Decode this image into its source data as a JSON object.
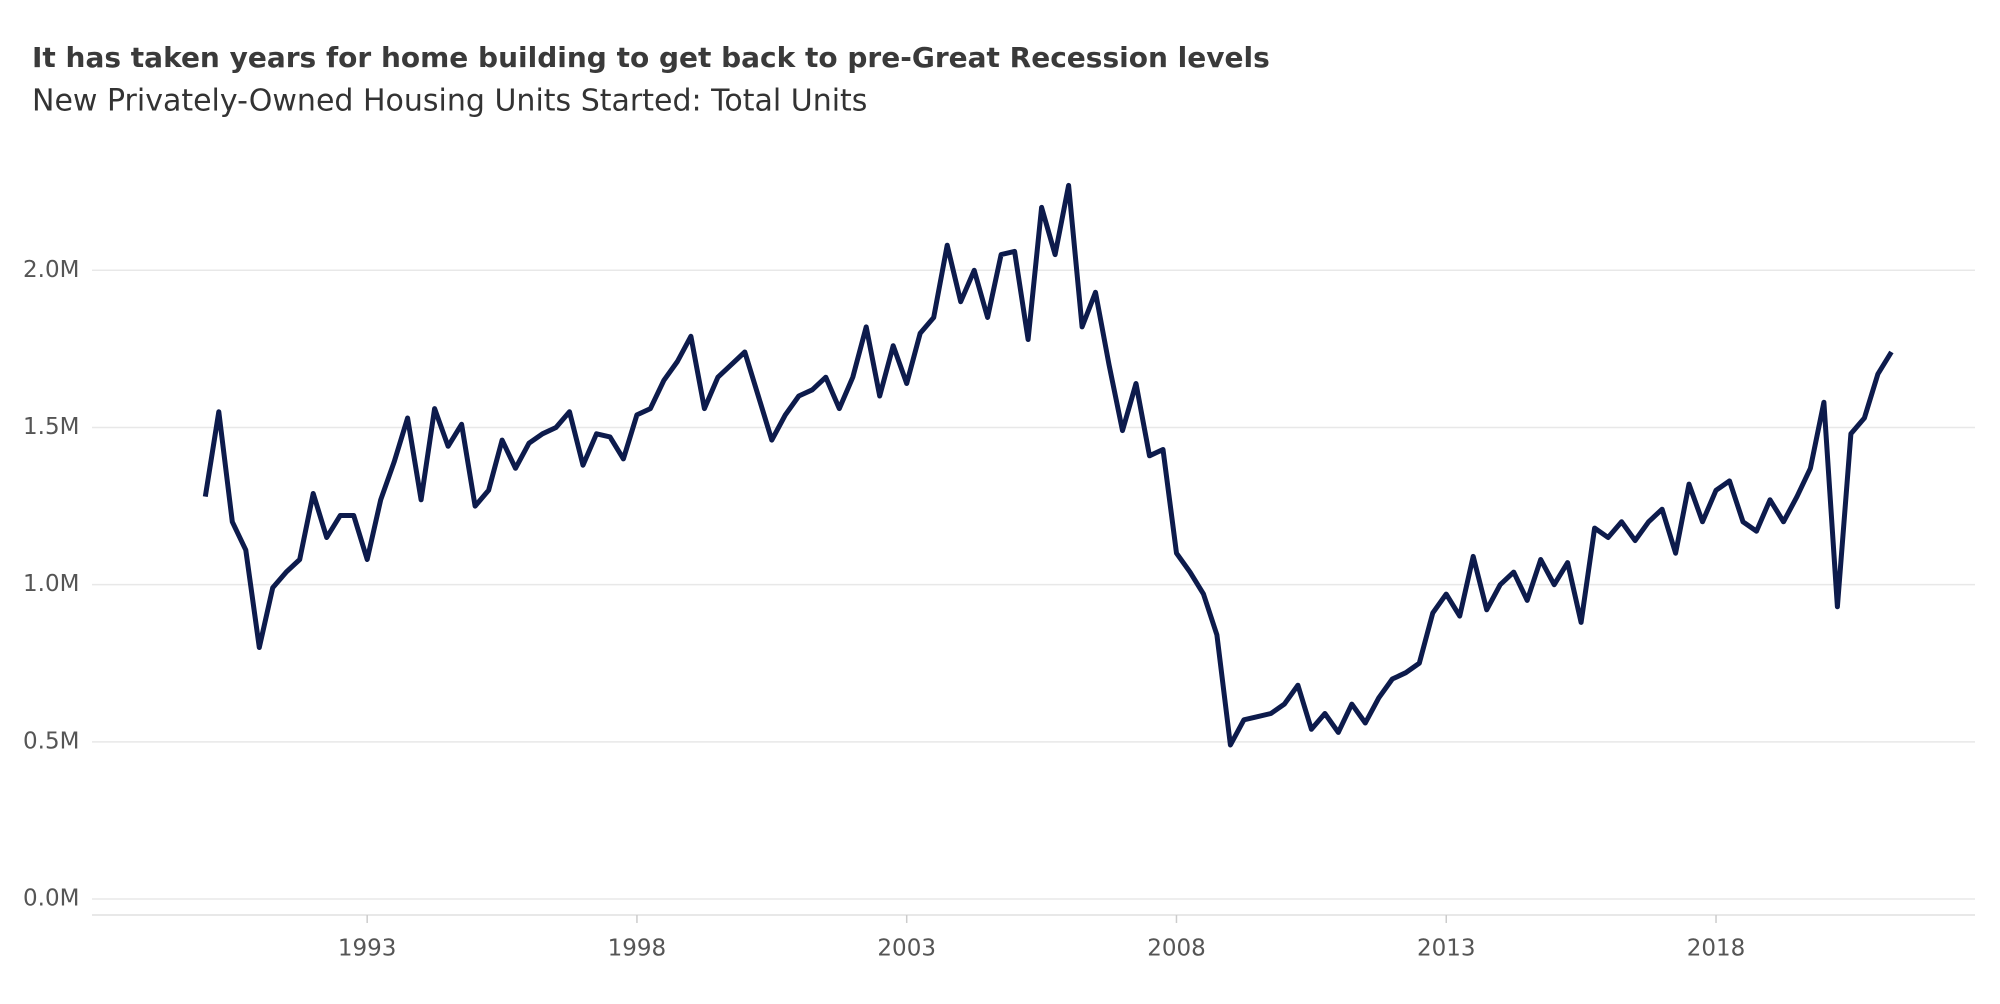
{
  "chart_data": {
    "type": "line",
    "title": "It has taken years for home building to get back to pre-Great Recession levels",
    "subtitle": "New Privately-Owned Housing Units Started: Total Units",
    "x": [
      1990,
      1990.25,
      1990.5,
      1990.75,
      1991,
      1991.25,
      1991.5,
      1991.75,
      1992,
      1992.25,
      1992.5,
      1992.75,
      1993,
      1993.25,
      1993.5,
      1993.75,
      1994,
      1994.25,
      1994.5,
      1994.75,
      1995,
      1995.25,
      1995.5,
      1995.75,
      1996,
      1996.25,
      1996.5,
      1996.75,
      1997,
      1997.25,
      1997.5,
      1997.75,
      1998,
      1998.25,
      1998.5,
      1998.75,
      1999,
      1999.25,
      1999.5,
      1999.75,
      2000,
      2000.25,
      2000.5,
      2000.75,
      2001,
      2001.25,
      2001.5,
      2001.75,
      2002,
      2002.25,
      2002.5,
      2002.75,
      2003,
      2003.25,
      2003.5,
      2003.75,
      2004,
      2004.25,
      2004.5,
      2004.75,
      2005,
      2005.25,
      2005.5,
      2005.75,
      2006,
      2006.25,
      2006.5,
      2006.75,
      2007,
      2007.25,
      2007.5,
      2007.75,
      2008,
      2008.25,
      2008.5,
      2008.75,
      2009,
      2009.25,
      2009.5,
      2009.75,
      2010,
      2010.25,
      2010.5,
      2010.75,
      2011,
      2011.25,
      2011.5,
      2011.75,
      2012,
      2012.25,
      2012.5,
      2012.75,
      2013,
      2013.25,
      2013.5,
      2013.75,
      2014,
      2014.25,
      2014.5,
      2014.75,
      2015,
      2015.25,
      2015.5,
      2015.75,
      2016,
      2016.25,
      2016.5,
      2016.75,
      2017,
      2017.25,
      2017.5,
      2017.75,
      2018,
      2018.25,
      2018.5,
      2018.75,
      2019,
      2019.25,
      2019.5,
      2019.75,
      2020,
      2020.25,
      2020.5,
      2020.75,
      2021,
      2021.25
    ],
    "series": [
      {
        "name": "Total Units",
        "color": "#0d1b4c",
        "values": [
          1280000,
          1550000,
          1200000,
          1110000,
          800000,
          990000,
          1040000,
          1080000,
          1290000,
          1150000,
          1220000,
          1220000,
          1080000,
          1270000,
          1390000,
          1530000,
          1270000,
          1560000,
          1440000,
          1510000,
          1250000,
          1300000,
          1460000,
          1370000,
          1450000,
          1480000,
          1500000,
          1550000,
          1380000,
          1480000,
          1470000,
          1400000,
          1540000,
          1560000,
          1650000,
          1710000,
          1790000,
          1560000,
          1660000,
          1700000,
          1740000,
          1600000,
          1460000,
          1540000,
          1600000,
          1620000,
          1660000,
          1560000,
          1660000,
          1820000,
          1600000,
          1760000,
          1640000,
          1800000,
          1850000,
          2080000,
          1900000,
          2000000,
          1850000,
          2050000,
          2060000,
          1780000,
          2200000,
          2050000,
          2270000,
          1820000,
          1930000,
          1700000,
          1490000,
          1640000,
          1410000,
          1430000,
          1100000,
          1040000,
          970000,
          840000,
          490000,
          570000,
          580000,
          590000,
          620000,
          680000,
          540000,
          590000,
          530000,
          620000,
          560000,
          640000,
          700000,
          720000,
          750000,
          910000,
          970000,
          900000,
          1090000,
          920000,
          1000000,
          1040000,
          950000,
          1080000,
          1000000,
          1070000,
          880000,
          1180000,
          1150000,
          1200000,
          1140000,
          1200000,
          1240000,
          1100000,
          1320000,
          1200000,
          1300000,
          1330000,
          1200000,
          1170000,
          1270000,
          1200000,
          1280000,
          1370000,
          1580000,
          930000,
          1480000,
          1530000,
          1670000,
          1740000
        ]
      }
    ],
    "xlim": [
      1987.9,
      2022.8
    ],
    "xticks": [
      1993,
      1998,
      2003,
      2008,
      2013,
      2018
    ],
    "ylim": [
      0,
      2300000
    ],
    "yticks": [
      {
        "value": 0,
        "label": "0.0M"
      },
      {
        "value": 500000,
        "label": "0.5M"
      },
      {
        "value": 1000000,
        "label": "1.0M"
      },
      {
        "value": 1500000,
        "label": "1.5M"
      },
      {
        "value": 2000000,
        "label": "2.0M"
      }
    ],
    "grid": true
  }
}
